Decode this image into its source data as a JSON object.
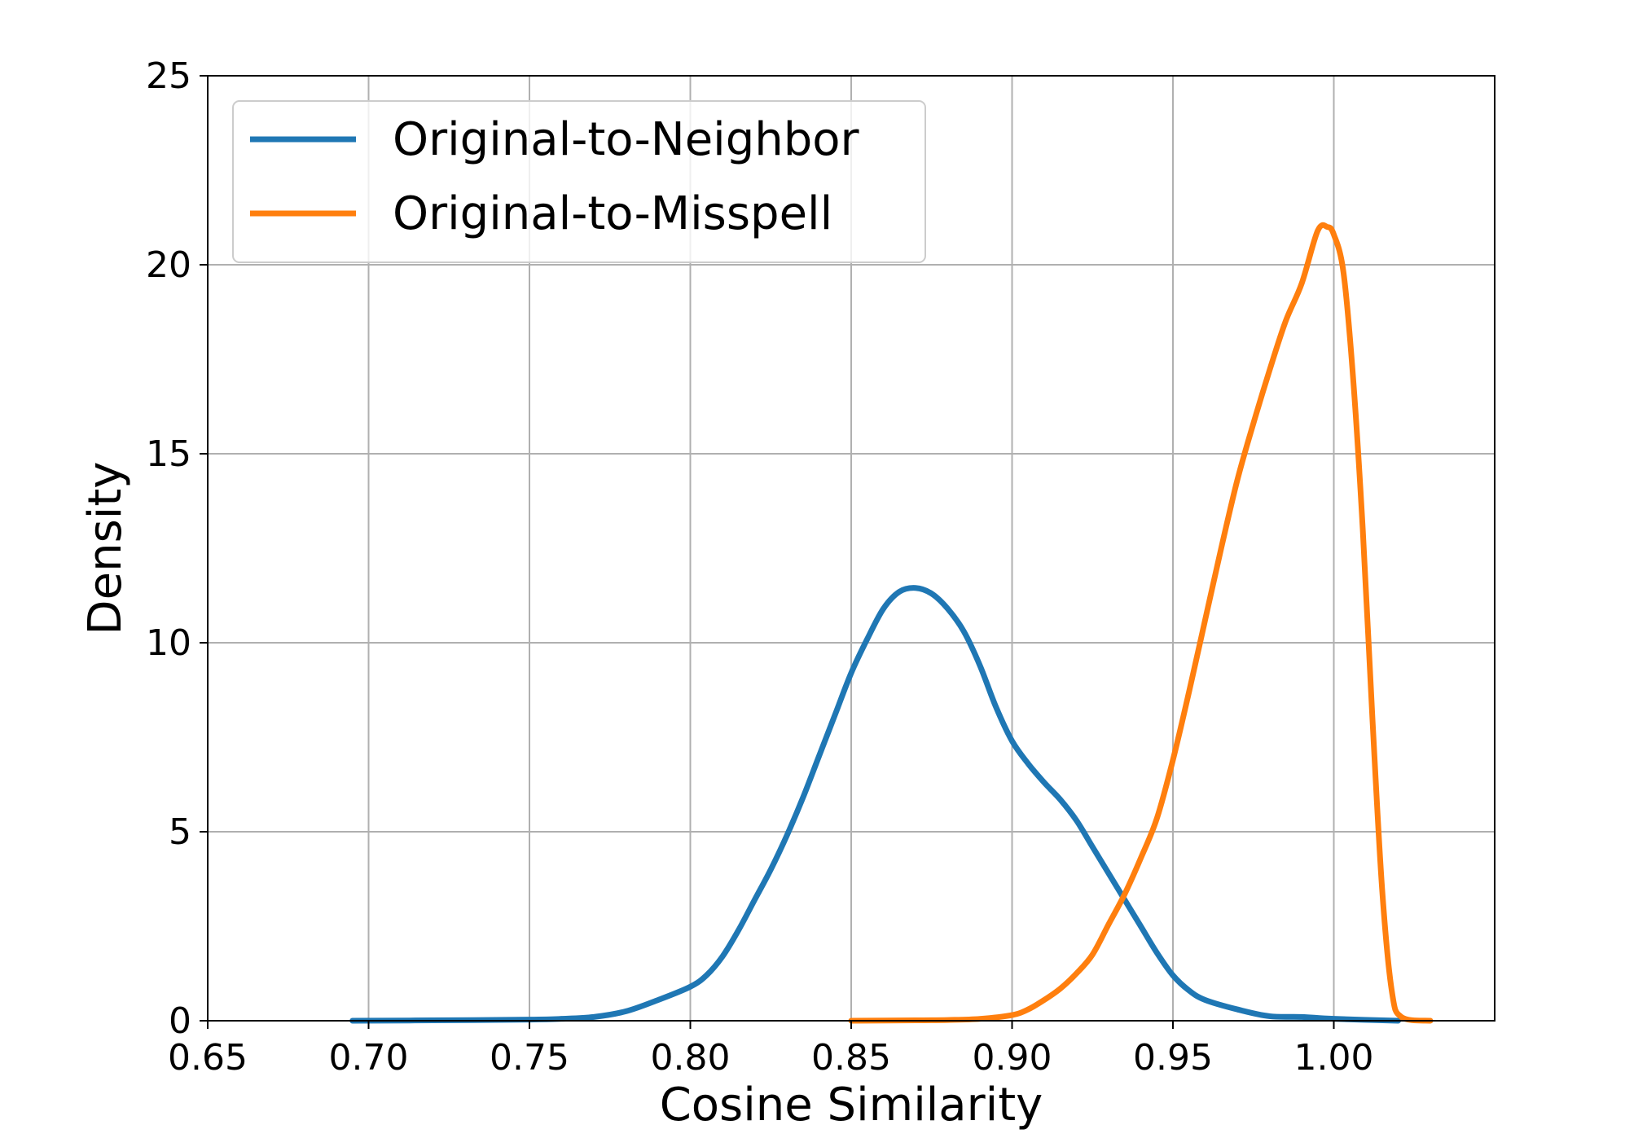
{
  "chart_data": {
    "type": "line",
    "title": "",
    "xlabel": "Cosine Similarity",
    "ylabel": "Density",
    "xlim": [
      0.65,
      1.05
    ],
    "ylim": [
      0,
      25
    ],
    "x_ticks": [
      0.65,
      0.7,
      0.75,
      0.8,
      0.85,
      0.9,
      0.95,
      1.0
    ],
    "x_tick_labels": [
      "0.65",
      "0.70",
      "0.75",
      "0.80",
      "0.85",
      "0.90",
      "0.95",
      "1.00"
    ],
    "y_ticks": [
      0,
      5,
      10,
      15,
      20,
      25
    ],
    "y_tick_labels": [
      "0",
      "5",
      "10",
      "15",
      "20",
      "25"
    ],
    "grid": true,
    "legend_position": "upper-left",
    "series": [
      {
        "name": "Original-to-Neighbor",
        "color": "#1f77b4",
        "points": [
          [
            0.695,
            0.0
          ],
          [
            0.72,
            0.01
          ],
          [
            0.75,
            0.03
          ],
          [
            0.76,
            0.05
          ],
          [
            0.77,
            0.1
          ],
          [
            0.78,
            0.25
          ],
          [
            0.79,
            0.55
          ],
          [
            0.8,
            0.9
          ],
          [
            0.805,
            1.2
          ],
          [
            0.81,
            1.7
          ],
          [
            0.815,
            2.4
          ],
          [
            0.82,
            3.2
          ],
          [
            0.825,
            4.0
          ],
          [
            0.83,
            4.9
          ],
          [
            0.835,
            5.9
          ],
          [
            0.84,
            7.0
          ],
          [
            0.845,
            8.1
          ],
          [
            0.85,
            9.2
          ],
          [
            0.855,
            10.1
          ],
          [
            0.86,
            10.9
          ],
          [
            0.865,
            11.35
          ],
          [
            0.87,
            11.45
          ],
          [
            0.875,
            11.3
          ],
          [
            0.88,
            10.9
          ],
          [
            0.885,
            10.3
          ],
          [
            0.89,
            9.4
          ],
          [
            0.895,
            8.3
          ],
          [
            0.9,
            7.4
          ],
          [
            0.905,
            6.8
          ],
          [
            0.91,
            6.3
          ],
          [
            0.915,
            5.85
          ],
          [
            0.92,
            5.3
          ],
          [
            0.925,
            4.6
          ],
          [
            0.93,
            3.9
          ],
          [
            0.935,
            3.2
          ],
          [
            0.94,
            2.5
          ],
          [
            0.945,
            1.8
          ],
          [
            0.95,
            1.2
          ],
          [
            0.955,
            0.8
          ],
          [
            0.96,
            0.55
          ],
          [
            0.97,
            0.3
          ],
          [
            0.98,
            0.12
          ],
          [
            0.99,
            0.1
          ],
          [
            1.0,
            0.05
          ],
          [
            1.02,
            0.0
          ]
        ]
      },
      {
        "name": "Original-to-Misspell",
        "color": "#ff7f0e",
        "points": [
          [
            0.85,
            0.0
          ],
          [
            0.87,
            0.01
          ],
          [
            0.88,
            0.02
          ],
          [
            0.89,
            0.05
          ],
          [
            0.9,
            0.15
          ],
          [
            0.905,
            0.3
          ],
          [
            0.91,
            0.55
          ],
          [
            0.915,
            0.85
          ],
          [
            0.92,
            1.25
          ],
          [
            0.925,
            1.75
          ],
          [
            0.93,
            2.55
          ],
          [
            0.935,
            3.35
          ],
          [
            0.94,
            4.3
          ],
          [
            0.945,
            5.35
          ],
          [
            0.95,
            6.9
          ],
          [
            0.955,
            8.7
          ],
          [
            0.96,
            10.6
          ],
          [
            0.965,
            12.5
          ],
          [
            0.97,
            14.3
          ],
          [
            0.975,
            15.8
          ],
          [
            0.98,
            17.2
          ],
          [
            0.985,
            18.5
          ],
          [
            0.99,
            19.5
          ],
          [
            0.995,
            20.9
          ],
          [
            0.998,
            21.0
          ],
          [
            1.0,
            20.8
          ],
          [
            1.003,
            19.8
          ],
          [
            1.006,
            17.0
          ],
          [
            1.009,
            13.0
          ],
          [
            1.012,
            8.0
          ],
          [
            1.015,
            3.5
          ],
          [
            1.018,
            0.8
          ],
          [
            1.021,
            0.1
          ],
          [
            1.03,
            0.0
          ]
        ]
      }
    ]
  }
}
